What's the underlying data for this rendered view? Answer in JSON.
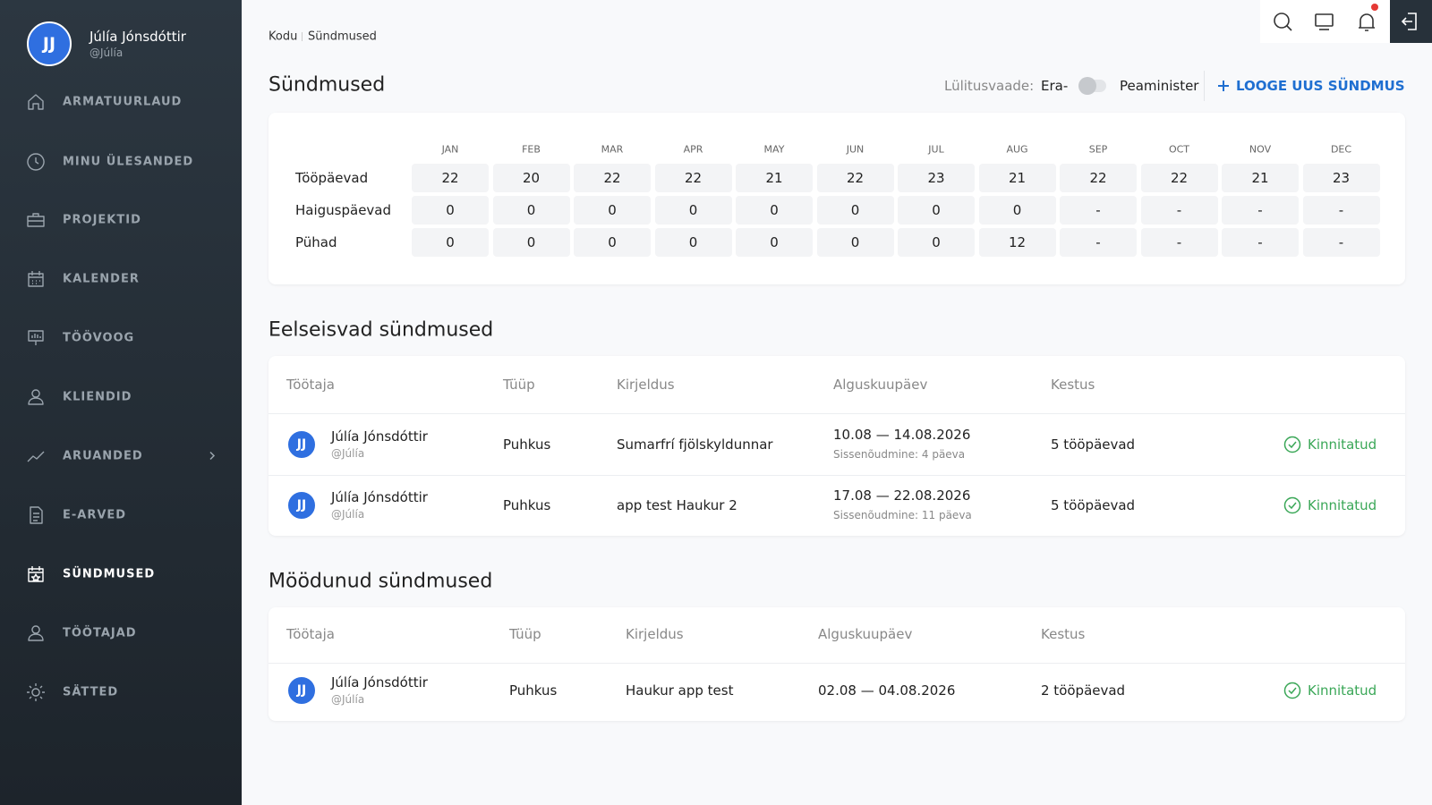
{
  "user": {
    "initials": "JJ",
    "name": "Júlía Jónsdóttir",
    "handle": "@Júlía"
  },
  "nav": [
    {
      "label": "ARMATUURLAUD"
    },
    {
      "label": "MINU ÜLESANDED"
    },
    {
      "label": "PROJEKTID"
    },
    {
      "label": "KALENDER"
    },
    {
      "label": "TÖÖVOOG"
    },
    {
      "label": "KLIENDID"
    },
    {
      "label": "ARUANDED",
      "expandable": true
    },
    {
      "label": "E-ARVED"
    },
    {
      "label": "SÜNDMUSED",
      "active": true
    },
    {
      "label": "TÖÖTAJAD"
    },
    {
      "label": "SÄTTED"
    }
  ],
  "breadcrumb": [
    "Kodu",
    "Sündmused"
  ],
  "title": "Sündmused",
  "view_toggle": {
    "label": "Lülitusvaade:",
    "left": "Era-",
    "right": "Peaminister"
  },
  "create_button": "LOOGE UUS SÜNDMUS",
  "summary": {
    "months": [
      "JAN",
      "FEB",
      "MAR",
      "APR",
      "MAY",
      "JUN",
      "JUL",
      "AUG",
      "SEP",
      "OCT",
      "NOV",
      "DEC"
    ],
    "rows": [
      {
        "label": "Tööpäevad",
        "values": [
          22,
          20,
          22,
          22,
          21,
          22,
          23,
          21,
          22,
          22,
          21,
          23
        ]
      },
      {
        "label": "Haiguspäevad",
        "values": [
          0,
          0,
          0,
          0,
          0,
          0,
          0,
          0,
          "-",
          "-",
          "-",
          "-"
        ]
      },
      {
        "label": "Pühad",
        "values": [
          0,
          0,
          0,
          0,
          0,
          0,
          0,
          12,
          "-",
          "-",
          "-",
          "-"
        ]
      }
    ]
  },
  "upcoming": {
    "title": "Eelseisvad sündmused",
    "columns": [
      "Töötaja",
      "Tüüp",
      "Kirjeldus",
      "Alguskuupäev",
      "Kestus"
    ],
    "rows": [
      {
        "initials": "JJ",
        "name": "Júlía Jónsdóttir",
        "handle": "@Júlía",
        "type": "Puhkus",
        "description": "Sumarfrí fjölskyldunnar",
        "dates": "10.08 — 14.08.2026",
        "request": "Sissenõudmine: 4 päeva",
        "duration": "5 tööpäevad",
        "status": "Kinnitatud"
      },
      {
        "initials": "JJ",
        "name": "Júlía Jónsdóttir",
        "handle": "@Júlía",
        "type": "Puhkus",
        "description": "app test Haukur 2",
        "dates": "17.08 — 22.08.2026",
        "request": "Sissenõudmine: 11 päeva",
        "duration": "5 tööpäevad",
        "status": "Kinnitatud"
      }
    ]
  },
  "past": {
    "title": "Möödunud sündmused",
    "columns": [
      "Töötaja",
      "Tüüp",
      "Kirjeldus",
      "Alguskuupäev",
      "Kestus"
    ],
    "rows": [
      {
        "initials": "JJ",
        "name": "Júlía Jónsdóttir",
        "handle": "@Júlía",
        "type": "Puhkus",
        "description": "Haukur app test",
        "dates": "02.08 — 04.08.2026",
        "duration": "2 tööpäevad",
        "status": "Kinnitatud"
      }
    ]
  }
}
